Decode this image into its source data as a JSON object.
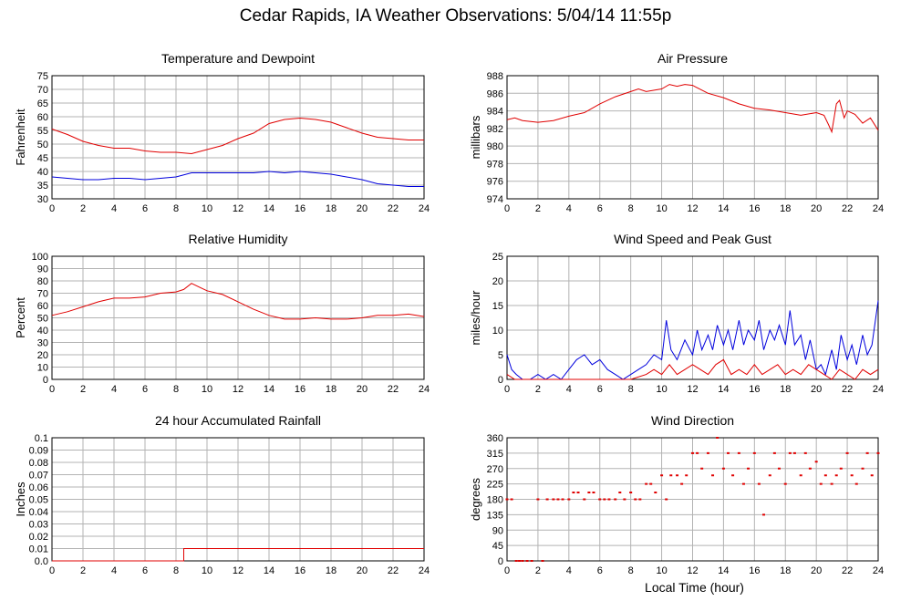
{
  "title": "Cedar Rapids, IA Weather Observations: 5/04/14 11:55p",
  "xaxis_title": "Local Time (hour)",
  "colors": {
    "red": "#e00000",
    "blue": "#0000dd",
    "grid": "#b3b3b3"
  },
  "chart_data": [
    {
      "id": "temp",
      "type": "line",
      "title": "Temperature and Dewpoint",
      "ylabel": "Fahrenheit",
      "xlim": [
        0,
        24
      ],
      "ylim": [
        30,
        75
      ],
      "xticks": [
        0,
        2,
        4,
        6,
        8,
        10,
        12,
        14,
        16,
        18,
        20,
        22,
        24
      ],
      "yticks": [
        30,
        35,
        40,
        45,
        50,
        55,
        60,
        65,
        70,
        75
      ],
      "series": [
        {
          "color": "red",
          "x": [
            0,
            1,
            2,
            3,
            4,
            5,
            6,
            7,
            8,
            9,
            10,
            11,
            12,
            13,
            14,
            15,
            16,
            17,
            18,
            19,
            20,
            21,
            22,
            23,
            24
          ],
          "y": [
            55.5,
            53.5,
            51,
            49.5,
            48.5,
            48.5,
            47.5,
            47,
            47,
            46.5,
            48,
            49.5,
            52,
            54,
            57.5,
            59,
            59.5,
            59,
            58,
            56,
            54,
            52.5,
            52,
            51.5,
            51.5
          ]
        },
        {
          "color": "blue",
          "x": [
            0,
            1,
            2,
            3,
            4,
            5,
            6,
            7,
            8,
            9,
            10,
            11,
            12,
            13,
            14,
            15,
            16,
            17,
            18,
            19,
            20,
            21,
            22,
            23,
            24
          ],
          "y": [
            38,
            37.5,
            37,
            37,
            37.5,
            37.5,
            37,
            37.5,
            38,
            39.5,
            39.5,
            39.5,
            39.5,
            39.5,
            40,
            39.5,
            40,
            39.5,
            39,
            38,
            37,
            35.5,
            35,
            34.5,
            34.5
          ]
        }
      ]
    },
    {
      "id": "pressure",
      "type": "line",
      "title": "Air Pressure",
      "ylabel": "millibars",
      "xlim": [
        0,
        24
      ],
      "ylim": [
        974,
        988
      ],
      "xticks": [
        0,
        2,
        4,
        6,
        8,
        10,
        12,
        14,
        16,
        18,
        20,
        22,
        24
      ],
      "yticks": [
        974,
        976,
        978,
        980,
        982,
        984,
        986,
        988
      ],
      "series": [
        {
          "color": "red",
          "x": [
            0,
            0.5,
            1,
            2,
            3,
            4,
            5,
            6,
            7,
            8,
            8.5,
            9,
            10,
            10.5,
            11,
            11.5,
            12,
            13,
            14,
            15,
            16,
            17,
            18,
            19,
            20,
            20.5,
            20.8,
            21,
            21.3,
            21.5,
            21.8,
            22,
            22.5,
            23,
            23.5,
            24
          ],
          "y": [
            983,
            983.2,
            982.9,
            982.7,
            982.9,
            983.4,
            983.8,
            984.8,
            985.6,
            986.2,
            986.5,
            986.2,
            986.5,
            987,
            986.8,
            987,
            986.9,
            986,
            985.5,
            984.8,
            984.3,
            984.1,
            983.8,
            983.5,
            983.8,
            983.5,
            982.4,
            981.6,
            984.8,
            985.2,
            983.2,
            984,
            983.6,
            982.6,
            983.2,
            981.8
          ]
        }
      ]
    },
    {
      "id": "rh",
      "type": "line",
      "title": "Relative Humidity",
      "ylabel": "Percent",
      "xlim": [
        0,
        24
      ],
      "ylim": [
        0,
        100
      ],
      "xticks": [
        0,
        2,
        4,
        6,
        8,
        10,
        12,
        14,
        16,
        18,
        20,
        22,
        24
      ],
      "yticks": [
        0,
        10,
        20,
        30,
        40,
        50,
        60,
        70,
        80,
        90,
        100
      ],
      "series": [
        {
          "color": "red",
          "x": [
            0,
            1,
            2,
            3,
            4,
            5,
            6,
            7,
            8,
            8.5,
            9,
            9.5,
            10,
            11,
            12,
            13,
            14,
            15,
            16,
            17,
            18,
            19,
            20,
            21,
            22,
            23,
            24
          ],
          "y": [
            52,
            55,
            59,
            63,
            66,
            66,
            67,
            70,
            71,
            73,
            78,
            75,
            72,
            69,
            63,
            57,
            52,
            49,
            49,
            50,
            49,
            49,
            50,
            52,
            52,
            53,
            51
          ]
        }
      ]
    },
    {
      "id": "wind",
      "type": "line",
      "title": "Wind Speed and Peak Gust",
      "ylabel": "miles/hour",
      "xlim": [
        0,
        24
      ],
      "ylim": [
        0,
        25
      ],
      "xticks": [
        0,
        2,
        4,
        6,
        8,
        10,
        12,
        14,
        16,
        18,
        20,
        22,
        24
      ],
      "yticks": [
        0,
        5,
        10,
        15,
        20,
        25
      ],
      "series": [
        {
          "color": "blue",
          "x": [
            0,
            0.3,
            0.6,
            1,
            1.5,
            2,
            2.5,
            3,
            3.5,
            4,
            4.5,
            5,
            5.5,
            6,
            6.5,
            7,
            7.5,
            8,
            8.5,
            9,
            9.5,
            10,
            10.3,
            10.6,
            11,
            11.5,
            12,
            12.3,
            12.6,
            13,
            13.3,
            13.6,
            14,
            14.3,
            14.6,
            15,
            15.3,
            15.6,
            16,
            16.3,
            16.6,
            17,
            17.3,
            17.6,
            18,
            18.3,
            18.6,
            19,
            19.3,
            19.6,
            20,
            20.3,
            20.6,
            21,
            21.3,
            21.6,
            22,
            22.3,
            22.6,
            23,
            23.3,
            23.6,
            24
          ],
          "y": [
            5,
            2,
            1,
            0,
            0,
            1,
            0,
            1,
            0,
            2,
            4,
            5,
            3,
            4,
            2,
            1,
            0,
            1,
            2,
            3,
            5,
            4,
            12,
            6,
            4,
            8,
            5,
            10,
            6,
            9,
            6,
            11,
            7,
            10,
            6,
            12,
            7,
            10,
            8,
            12,
            6,
            10,
            8,
            11,
            7,
            14,
            7,
            9,
            4,
            8,
            2,
            3,
            1,
            6,
            2,
            9,
            4,
            7,
            3,
            9,
            5,
            7,
            16
          ]
        },
        {
          "color": "red",
          "x": [
            0,
            0.5,
            1,
            2,
            3,
            4,
            5,
            6,
            7,
            8,
            9,
            9.5,
            10,
            10.5,
            11,
            11.5,
            12,
            12.5,
            13,
            13.5,
            14,
            14.5,
            15,
            15.5,
            16,
            16.5,
            17,
            17.5,
            18,
            18.5,
            19,
            19.5,
            20,
            20.5,
            21,
            21.5,
            22,
            22.5,
            23,
            23.5,
            24
          ],
          "y": [
            1,
            0,
            0,
            0,
            0,
            0,
            0,
            0,
            0,
            0,
            1,
            2,
            1,
            3,
            1,
            2,
            3,
            2,
            1,
            3,
            4,
            1,
            2,
            1,
            3,
            1,
            2,
            3,
            1,
            2,
            1,
            3,
            2,
            1,
            0,
            2,
            1,
            0,
            2,
            1,
            2
          ]
        }
      ]
    },
    {
      "id": "rain",
      "type": "line",
      "title": "24 hour Accumulated Rainfall",
      "ylabel": "Inches",
      "xlim": [
        0,
        24
      ],
      "ylim": [
        0,
        0.1
      ],
      "xticks": [
        0,
        2,
        4,
        6,
        8,
        10,
        12,
        14,
        16,
        18,
        20,
        22,
        24
      ],
      "yticks": [
        "0.0",
        "0.01",
        "0.02",
        "0.03",
        "0.04",
        "0.05",
        "0.06",
        "0.07",
        "0.08",
        "0.09",
        "0.1"
      ],
      "series": [
        {
          "color": "red",
          "x": [
            0,
            8.5,
            8.5,
            24
          ],
          "y": [
            0,
            0,
            0.01,
            0.01
          ]
        }
      ]
    },
    {
      "id": "winddir",
      "type": "scatter",
      "title": "Wind Direction",
      "ylabel": "degrees",
      "xlim": [
        0,
        24
      ],
      "ylim": [
        0,
        360
      ],
      "xticks": [
        0,
        2,
        4,
        6,
        8,
        10,
        12,
        14,
        16,
        18,
        20,
        22,
        24
      ],
      "yticks": [
        0,
        45,
        90,
        135,
        180,
        225,
        270,
        315,
        360
      ],
      "series": [
        {
          "color": "red",
          "x": [
            0,
            0.3,
            0.6,
            0.8,
            1,
            1.3,
            1.6,
            2,
            2.3,
            2.6,
            3,
            3.3,
            3.6,
            4,
            4.3,
            4.6,
            5,
            5.3,
            5.6,
            6,
            6.3,
            6.6,
            7,
            7.3,
            7.6,
            8,
            8.3,
            8.6,
            9,
            9.3,
            9.6,
            10,
            10.3,
            10.6,
            11,
            11.3,
            11.6,
            12,
            12.3,
            12.6,
            13,
            13.3,
            13.6,
            14,
            14.3,
            14.6,
            15,
            15.3,
            15.6,
            16,
            16.3,
            16.6,
            17,
            17.3,
            17.6,
            18,
            18.3,
            18.6,
            19,
            19.3,
            19.6,
            20,
            20.3,
            20.6,
            21,
            21.3,
            21.6,
            22,
            22.3,
            22.6,
            23,
            23.3,
            23.6,
            24
          ],
          "y": [
            180,
            180,
            0,
            0,
            0,
            0,
            0,
            180,
            0,
            180,
            180,
            180,
            180,
            180,
            200,
            200,
            180,
            200,
            200,
            180,
            180,
            180,
            180,
            200,
            180,
            200,
            180,
            180,
            225,
            225,
            200,
            250,
            180,
            250,
            250,
            225,
            250,
            315,
            315,
            270,
            315,
            250,
            360,
            270,
            315,
            250,
            315,
            225,
            270,
            315,
            225,
            135,
            250,
            315,
            270,
            225,
            315,
            315,
            250,
            315,
            270,
            290,
            225,
            250,
            225,
            250,
            270,
            315,
            250,
            225,
            270,
            315,
            250,
            315
          ]
        }
      ]
    }
  ]
}
